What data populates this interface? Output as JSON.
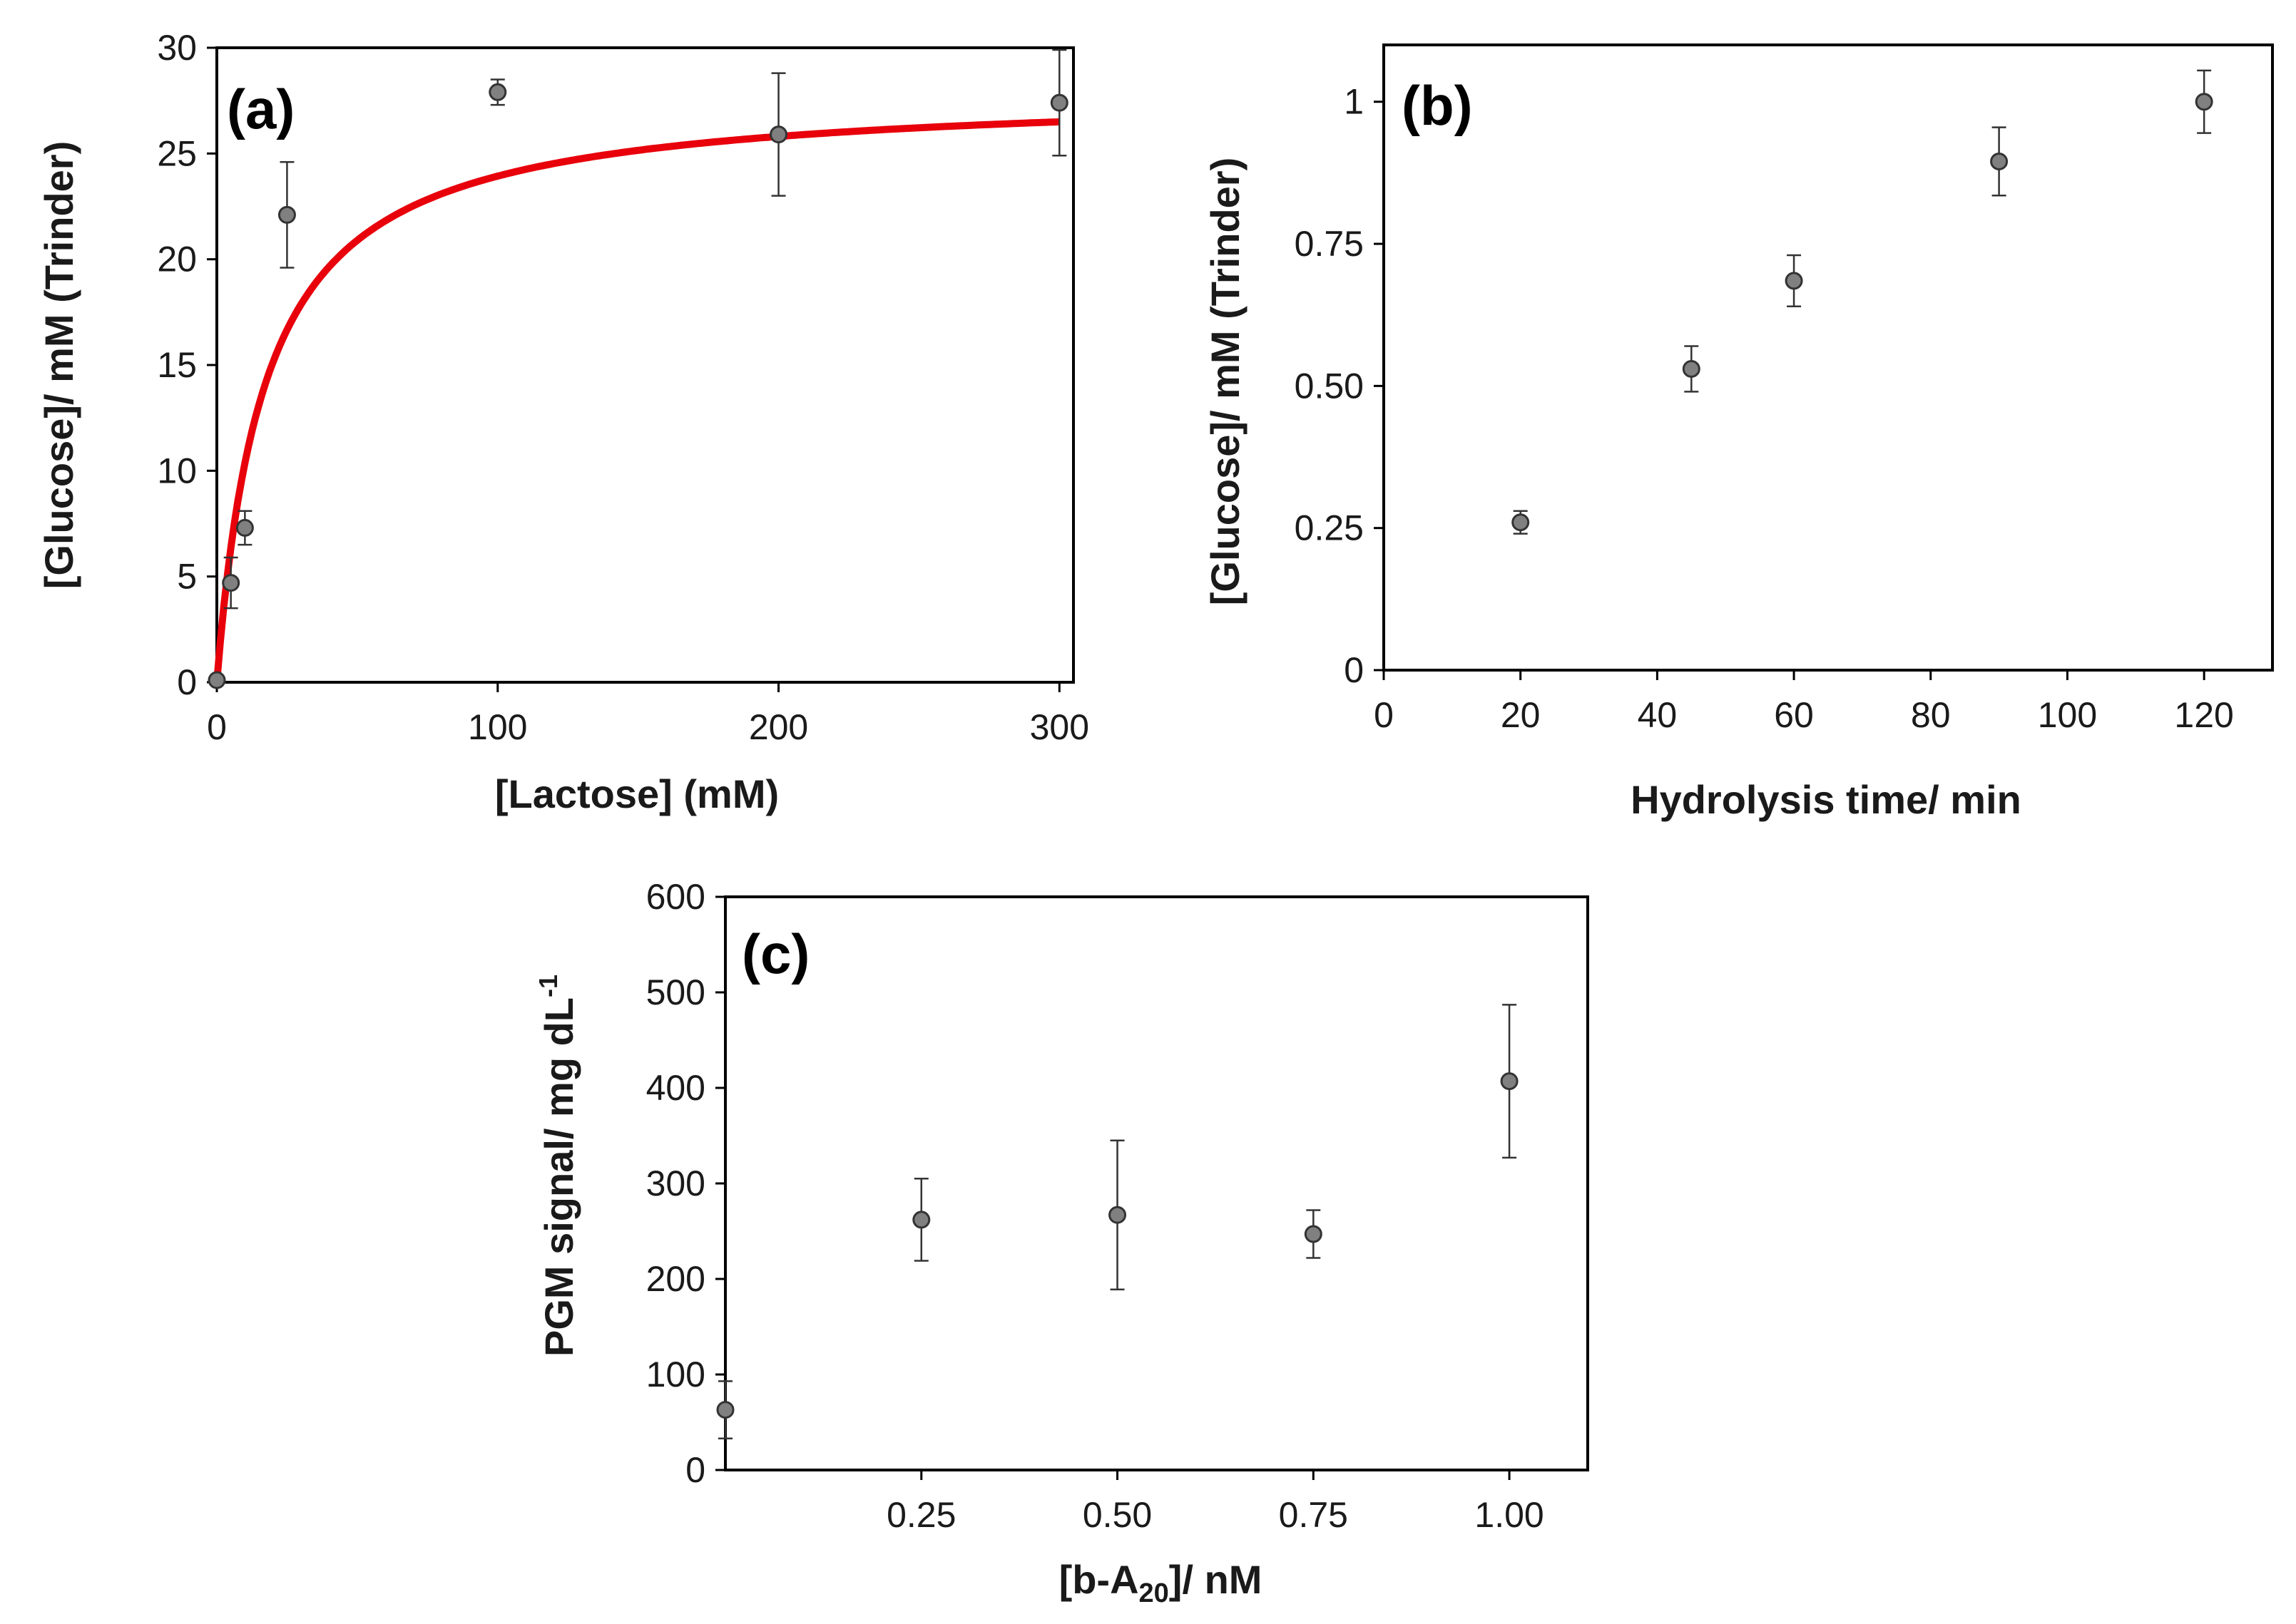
{
  "colors": {
    "axis": "#000000",
    "marker_fill": "#808080",
    "marker_stroke": "#333333",
    "error_bar": "#333333",
    "fit_line": "#e8000b"
  },
  "chart_data": [
    {
      "id": "a",
      "type": "scatter",
      "panel_label": "(a)",
      "xlabel": "[Lactose] (mM)",
      "ylabel": "[Glucose]/ mM (Trinder)",
      "xlim": [
        0,
        305
      ],
      "ylim": [
        0,
        30
      ],
      "xticks": [
        0,
        100,
        200,
        300
      ],
      "xtick_labels": [
        "0",
        "100",
        "200",
        "300"
      ],
      "yticks": [
        0,
        5,
        10,
        15,
        20,
        25,
        30
      ],
      "ytick_labels": [
        "0",
        "5",
        "10",
        "15",
        "20",
        "25",
        "30"
      ],
      "x_tick_side": "bottom",
      "y_tick_side": "left",
      "points": [
        {
          "x": 0,
          "y": 0.1,
          "err": 0.1
        },
        {
          "x": 5,
          "y": 4.7,
          "err": 1.2
        },
        {
          "x": 10,
          "y": 7.3,
          "err": 0.8
        },
        {
          "x": 25,
          "y": 22.1,
          "err": 2.5
        },
        {
          "x": 100,
          "y": 27.9,
          "err": 0.6
        },
        {
          "x": 200,
          "y": 25.9,
          "err": 2.9
        },
        {
          "x": 300,
          "y": 27.4,
          "err": 2.5
        }
      ],
      "fit": {
        "model": "michaelis-menten",
        "vmax": 28.0,
        "km": 17.0,
        "xmax": 300
      }
    },
    {
      "id": "b",
      "type": "scatter",
      "panel_label": "(b)",
      "xlabel": "Hydrolysis time/ min",
      "ylabel": "[Glucose]/ mM (Trinder)",
      "xlim": [
        0,
        130
      ],
      "ylim": [
        0,
        1.1
      ],
      "xticks": [
        0,
        20,
        40,
        60,
        80,
        100,
        120
      ],
      "xtick_labels": [
        "0",
        "20",
        "40",
        "60",
        "80",
        "100",
        "120"
      ],
      "yticks": [
        0,
        0.25,
        0.5,
        0.75,
        1
      ],
      "ytick_labels": [
        "0",
        "0.25",
        "0.50",
        "0.75",
        "1"
      ],
      "x_tick_side": "bottom",
      "y_tick_side": "left",
      "points": [
        {
          "x": 20,
          "y": 0.26,
          "err": 0.02
        },
        {
          "x": 45,
          "y": 0.53,
          "err": 0.04
        },
        {
          "x": 60,
          "y": 0.685,
          "err": 0.045
        },
        {
          "x": 90,
          "y": 0.895,
          "err": 0.06
        },
        {
          "x": 120,
          "y": 1.0,
          "err": 0.055
        }
      ]
    },
    {
      "id": "c",
      "type": "scatter",
      "panel_label": "(c)",
      "xlabel_main": "[b-A",
      "xlabel_sub": "20",
      "xlabel_end": "]/  nM",
      "ylabel_main": "PGM signal/ mg dL",
      "ylabel_sup": "-1",
      "xlim": [
        0,
        1.1
      ],
      "ylim": [
        0,
        600
      ],
      "xticks": [
        0.25,
        0.5,
        0.75,
        1.0
      ],
      "xtick_labels": [
        "0.25",
        "0.50",
        "0.75",
        "1.00"
      ],
      "yticks": [
        0,
        100,
        200,
        300,
        400,
        500,
        600
      ],
      "ytick_labels": [
        "0",
        "100",
        "200",
        "300",
        "400",
        "500",
        "600"
      ],
      "x_tick_side": "bottom",
      "y_tick_side": "left",
      "points": [
        {
          "x": 0,
          "y": 63,
          "err": 30
        },
        {
          "x": 0.25,
          "y": 262,
          "err": 43
        },
        {
          "x": 0.5,
          "y": 267,
          "err": 78
        },
        {
          "x": 0.75,
          "y": 247,
          "err": 25
        },
        {
          "x": 1.0,
          "y": 407,
          "err": 80
        }
      ]
    }
  ]
}
